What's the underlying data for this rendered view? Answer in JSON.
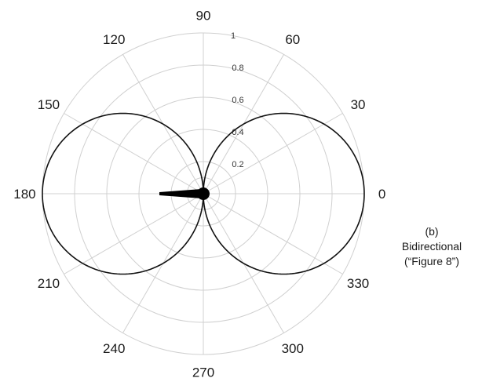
{
  "chart_data": {
    "type": "polar-line",
    "angular_ticks": [
      "0",
      "30",
      "60",
      "90",
      "120",
      "150",
      "180",
      "210",
      "240",
      "270",
      "300",
      "330"
    ],
    "angular_tick_values": [
      0,
      30,
      60,
      90,
      120,
      150,
      180,
      210,
      240,
      270,
      300,
      330
    ],
    "radial_ticks": [
      "0.2",
      "0.4",
      "0.6",
      "0.8",
      "1"
    ],
    "radial_tick_values": [
      0.2,
      0.4,
      0.6,
      0.8,
      1
    ],
    "rlim": [
      0,
      1
    ],
    "grid": true,
    "series": [
      {
        "pattern": "r = |cos(theta)|",
        "theta": [
          0,
          15,
          30,
          45,
          60,
          75,
          90,
          105,
          120,
          135,
          150,
          165,
          180,
          195,
          210,
          225,
          240,
          255,
          270,
          285,
          300,
          315,
          330,
          345
        ],
        "r": [
          1.0,
          0.966,
          0.866,
          0.707,
          0.5,
          0.259,
          0.0,
          0.259,
          0.5,
          0.707,
          0.866,
          0.966,
          1.0,
          0.966,
          0.866,
          0.707,
          0.5,
          0.259,
          0.0,
          0.259,
          0.5,
          0.707,
          0.866,
          0.966
        ],
        "color": "#111111"
      }
    ],
    "caption": [
      "(b)",
      "Bidirectional",
      "(“Figure 8”)"
    ]
  },
  "colors": {
    "grid": "#d0d0d0",
    "curve": "#111111",
    "marker": "#000000",
    "text": "#1a1a1a"
  },
  "icons": {
    "center_marker": "microphone-icon"
  }
}
